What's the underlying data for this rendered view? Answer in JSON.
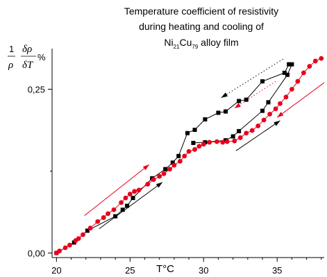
{
  "chart_data": {
    "type": "scatter",
    "title_lines": [
      "Temperature coefficient of resistivity",
      "during heating and cooling of"
    ],
    "title_alloy": {
      "ni": "Ni",
      "ni_sub": "21",
      "cu": "Cu",
      "cu_sub": "79",
      "suffix": " alloy film"
    },
    "xlabel": "T°C",
    "ylabel": {
      "num_prefix": "1",
      "num_frac": "δρ",
      "den_prefix": "ρ",
      "den_frac": "δT",
      "unit": "%"
    },
    "xlim": [
      19.7,
      38.2
    ],
    "ylim": [
      -0.007,
      0.312
    ],
    "x_ticks": [
      20,
      25,
      30,
      35
    ],
    "x_tick_labels": [
      "20",
      "25",
      "30",
      "35"
    ],
    "y_ticks": [
      0.0,
      0.25
    ],
    "y_tick_labels": [
      "0,00",
      "0,25"
    ],
    "colors": {
      "black": "#000000",
      "red": "#e8001c"
    },
    "series": [
      {
        "color": "black",
        "marker": "square",
        "points": [
          [
            20.0,
            0.0
          ],
          [
            21.2,
            0.016
          ],
          [
            22.1,
            0.034
          ],
          [
            24.0,
            0.056
          ],
          [
            24.5,
            0.066
          ],
          [
            24.8,
            0.072
          ],
          [
            25.2,
            0.084
          ],
          [
            26.5,
            0.114
          ],
          [
            27.4,
            0.128
          ],
          [
            27.9,
            0.138
          ],
          [
            28.3,
            0.148
          ],
          [
            28.9,
            0.183
          ],
          [
            29.4,
            0.188
          ],
          [
            30.1,
            0.204
          ],
          [
            31.0,
            0.214
          ],
          [
            31.5,
            0.216
          ],
          [
            32.4,
            0.232
          ],
          [
            32.9,
            0.234
          ],
          [
            34.0,
            0.262
          ],
          [
            35.5,
            0.275
          ],
          [
            35.8,
            0.288
          ],
          [
            36.0,
            0.288
          ],
          [
            35.7,
            0.272
          ],
          [
            34.4,
            0.23
          ],
          [
            34.0,
            0.217
          ],
          [
            32.4,
            0.186
          ],
          [
            32.0,
            0.178
          ],
          [
            31.5,
            0.172
          ],
          [
            30.1,
            0.169
          ],
          [
            29.3,
            0.168
          ]
        ]
      },
      {
        "color": "red",
        "marker": "circle",
        "points": [
          [
            20.0,
            0.0
          ],
          [
            20.2,
            0.003
          ],
          [
            20.6,
            0.008
          ],
          [
            20.9,
            0.012
          ],
          [
            21.3,
            0.019
          ],
          [
            21.5,
            0.022
          ],
          [
            21.8,
            0.028
          ],
          [
            22.3,
            0.038
          ],
          [
            22.8,
            0.048
          ],
          [
            23.2,
            0.054
          ],
          [
            23.5,
            0.06
          ],
          [
            23.9,
            0.066
          ],
          [
            24.4,
            0.077
          ],
          [
            24.7,
            0.084
          ],
          [
            25.0,
            0.09
          ],
          [
            25.3,
            0.094
          ],
          [
            25.6,
            0.096
          ],
          [
            26.2,
            0.105
          ],
          [
            26.6,
            0.112
          ],
          [
            27.0,
            0.117
          ],
          [
            27.3,
            0.121
          ],
          [
            27.7,
            0.128
          ],
          [
            28.0,
            0.134
          ],
          [
            28.4,
            0.14
          ],
          [
            28.7,
            0.148
          ],
          [
            29.0,
            0.155
          ],
          [
            29.4,
            0.158
          ],
          [
            29.7,
            0.163
          ],
          [
            30.0,
            0.166
          ],
          [
            30.4,
            0.169
          ],
          [
            30.9,
            0.17
          ],
          [
            31.3,
            0.169
          ],
          [
            31.6,
            0.17
          ],
          [
            32.1,
            0.171
          ],
          [
            32.5,
            0.176
          ],
          [
            32.9,
            0.183
          ],
          [
            33.3,
            0.187
          ],
          [
            33.7,
            0.194
          ],
          [
            34.1,
            0.203
          ],
          [
            34.5,
            0.212
          ],
          [
            34.9,
            0.22
          ],
          [
            35.2,
            0.228
          ],
          [
            35.6,
            0.238
          ],
          [
            36.0,
            0.25
          ],
          [
            36.4,
            0.262
          ],
          [
            36.8,
            0.275
          ],
          [
            37.2,
            0.285
          ],
          [
            37.6,
            0.293
          ],
          [
            38.0,
            0.297
          ]
        ]
      }
    ],
    "arrows": [
      {
        "color": "red",
        "style": "solid",
        "from": [
          21.9,
          0.057
        ],
        "to": [
          26.3,
          0.135
        ]
      },
      {
        "color": "black",
        "style": "solid",
        "from": [
          22.9,
          0.037
        ],
        "to": [
          27.2,
          0.108
        ]
      },
      {
        "color": "red",
        "style": "solid",
        "from": [
          38.2,
          0.26
        ],
        "to": [
          35.0,
          0.207
        ]
      },
      {
        "color": "black",
        "style": "solid",
        "from": [
          32.2,
          0.156
        ],
        "to": [
          35.2,
          0.202
        ]
      },
      {
        "color": "black",
        "style": "dotted",
        "from": [
          35.4,
          0.296
        ],
        "to": [
          31.2,
          0.237
        ]
      },
      {
        "color": "red",
        "style": "dotted",
        "from": [
          34.9,
          0.262
        ],
        "to": [
          32.1,
          0.221
        ]
      }
    ]
  }
}
